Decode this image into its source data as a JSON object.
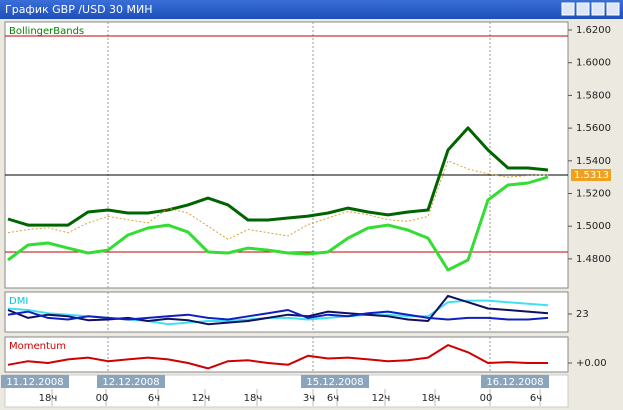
{
  "window": {
    "title": "График GBP /USD  30 МИН"
  },
  "chart_data": [
    {
      "type": "line",
      "title": "BollingerBands",
      "title_color": "#008000",
      "x": [
        0,
        1,
        2,
        3,
        4,
        5,
        6,
        7,
        8,
        9,
        10,
        11,
        12,
        13,
        14,
        15,
        16,
        17,
        18,
        19,
        20,
        21,
        22,
        23,
        24,
        25,
        26,
        27
      ],
      "xlim": [
        -0.15,
        28
      ],
      "ylim": [
        1.4622,
        1.6249
      ],
      "yticks": [
        {
          "value": 1.62,
          "label": "1.6200"
        },
        {
          "value": 1.6,
          "label": "1.6000"
        },
        {
          "value": 1.58,
          "label": "1.5800"
        },
        {
          "value": 1.56,
          "label": "1.5600"
        },
        {
          "value": 1.54,
          "label": "1.5400"
        },
        {
          "value": 1.52,
          "label": "1.5200"
        },
        {
          "value": 1.5,
          "label": "1.5000"
        },
        {
          "value": 1.48,
          "label": "1.4800"
        }
      ],
      "hlines": [
        {
          "value": 1.6163,
          "color": "#c00000"
        },
        {
          "value": 1.4842,
          "color": "#c00000"
        }
      ],
      "last_price": 1.5313,
      "xgrid": [
        5,
        15.25,
        24.1
      ],
      "series": [
        {
          "name": "upper",
          "color": "#006400",
          "width": 3,
          "values": [
            1.5044,
            1.5007,
            1.5007,
            1.5007,
            1.5087,
            1.5099,
            1.5081,
            1.5081,
            1.5099,
            1.513,
            1.5172,
            1.513,
            1.5038,
            1.5038,
            1.505,
            1.5062,
            1.5081,
            1.5111,
            1.5087,
            1.5069,
            1.5087,
            1.5099,
            1.5466,
            1.5601,
            1.5466,
            1.5356,
            1.5356,
            1.5344
          ]
        },
        {
          "name": "lower",
          "color": "#33dd33",
          "width": 3,
          "values": [
            1.4793,
            1.4885,
            1.4897,
            1.4866,
            1.4836,
            1.4854,
            1.4946,
            1.4989,
            1.5007,
            1.4964,
            1.4842,
            1.4836,
            1.4866,
            1.4854,
            1.4836,
            1.483,
            1.4842,
            1.4927,
            1.4989,
            1.5007,
            1.4976,
            1.4927,
            1.4732,
            1.4793,
            1.516,
            1.5252,
            1.5264,
            1.5301
          ]
        },
        {
          "name": "price",
          "color": "#e0a030",
          "width": 1,
          "dashed": true,
          "values": [
            1.496,
            1.498,
            1.499,
            1.496,
            1.502,
            1.506,
            1.504,
            1.502,
            1.511,
            1.508,
            1.5,
            1.492,
            1.498,
            1.496,
            1.494,
            1.501,
            1.505,
            1.509,
            1.507,
            1.504,
            1.503,
            1.506,
            1.54,
            1.535,
            1.532,
            1.53,
            1.531,
            1.5313
          ]
        }
      ],
      "xticks": [
        {
          "value": 2.2,
          "label": "18ч"
        },
        {
          "value": 4.9,
          "label": "00"
        },
        {
          "value": 7.5,
          "label": "6ч"
        },
        {
          "value": 9.85,
          "label": "12ч"
        },
        {
          "value": 12.45,
          "label": "18ч"
        },
        {
          "value": 15.25,
          "label": "3ч"
        },
        {
          "value": 16.45,
          "label": "6ч"
        },
        {
          "value": 18.85,
          "label": "12ч"
        },
        {
          "value": 21.35,
          "label": "18ч"
        },
        {
          "value": 24.1,
          "label": "00"
        },
        {
          "value": 26.6,
          "label": "6ч"
        }
      ],
      "date_labels": [
        {
          "value": 1.35,
          "label": "11.12.2008"
        },
        {
          "value": 6.15,
          "label": "12.12.2008"
        },
        {
          "value": 16.35,
          "label": "15.12.2008"
        },
        {
          "value": 25.35,
          "label": "16.12.2008"
        }
      ]
    },
    {
      "type": "line",
      "title": "DMI",
      "title_color": "#00c8e0",
      "x": [
        0,
        1,
        2,
        3,
        4,
        5,
        6,
        7,
        8,
        9,
        10,
        11,
        12,
        13,
        14,
        15,
        16,
        17,
        18,
        19,
        20,
        21,
        22,
        23,
        24,
        25,
        26,
        27
      ],
      "xlim": [
        -0.15,
        28
      ],
      "ylim": [
        0,
        51
      ],
      "yticks": [
        23
      ],
      "xgrid": [
        5,
        15.25,
        24.1
      ],
      "series": [
        {
          "name": "plus",
          "color": "#40e0f0",
          "width": 2,
          "values": [
            30,
            28,
            24,
            22,
            20,
            18,
            16,
            14,
            10,
            12,
            14,
            14,
            16,
            18,
            18,
            16,
            18,
            20,
            22,
            22,
            20,
            20,
            38,
            40,
            40,
            38,
            36,
            34
          ]
        },
        {
          "name": "minus",
          "color": "#101060",
          "width": 2,
          "values": [
            28,
            18,
            22,
            20,
            15,
            16,
            18,
            14,
            17,
            15,
            10,
            12,
            14,
            18,
            22,
            20,
            26,
            24,
            22,
            20,
            16,
            14,
            46,
            38,
            30,
            28,
            26,
            24
          ]
        },
        {
          "name": "adx",
          "color": "#1020c0",
          "width": 2,
          "values": [
            22,
            26,
            18,
            16,
            20,
            18,
            16,
            18,
            20,
            22,
            18,
            16,
            20,
            24,
            28,
            18,
            22,
            20,
            24,
            26,
            22,
            18,
            16,
            18,
            18,
            16,
            16,
            18
          ]
        }
      ]
    },
    {
      "type": "line",
      "title": "Momentum",
      "title_color": "#d00000",
      "x": [
        0,
        1,
        2,
        3,
        4,
        5,
        6,
        7,
        8,
        9,
        10,
        11,
        12,
        13,
        14,
        15,
        16,
        17,
        18,
        19,
        20,
        21,
        22,
        23,
        24,
        25,
        26,
        27
      ],
      "xlim": [
        -0.15,
        28
      ],
      "ylim": [
        -0.01,
        0.029
      ],
      "yticks": [
        {
          "value": 0,
          "label": "+0.00"
        }
      ],
      "xgrid": [
        5,
        15.25,
        24.1
      ],
      "series": [
        {
          "name": "momentum",
          "color": "#d00000",
          "width": 2,
          "values": [
            -0.002,
            0.002,
            0.0,
            0.004,
            0.006,
            0.002,
            0.004,
            0.006,
            0.004,
            0.0,
            -0.006,
            0.002,
            0.003,
            0.0,
            -0.002,
            0.008,
            0.005,
            0.006,
            0.004,
            0.002,
            0.003,
            0.006,
            0.02,
            0.012,
            0.0,
            0.001,
            0.0,
            0.0
          ]
        }
      ]
    }
  ]
}
